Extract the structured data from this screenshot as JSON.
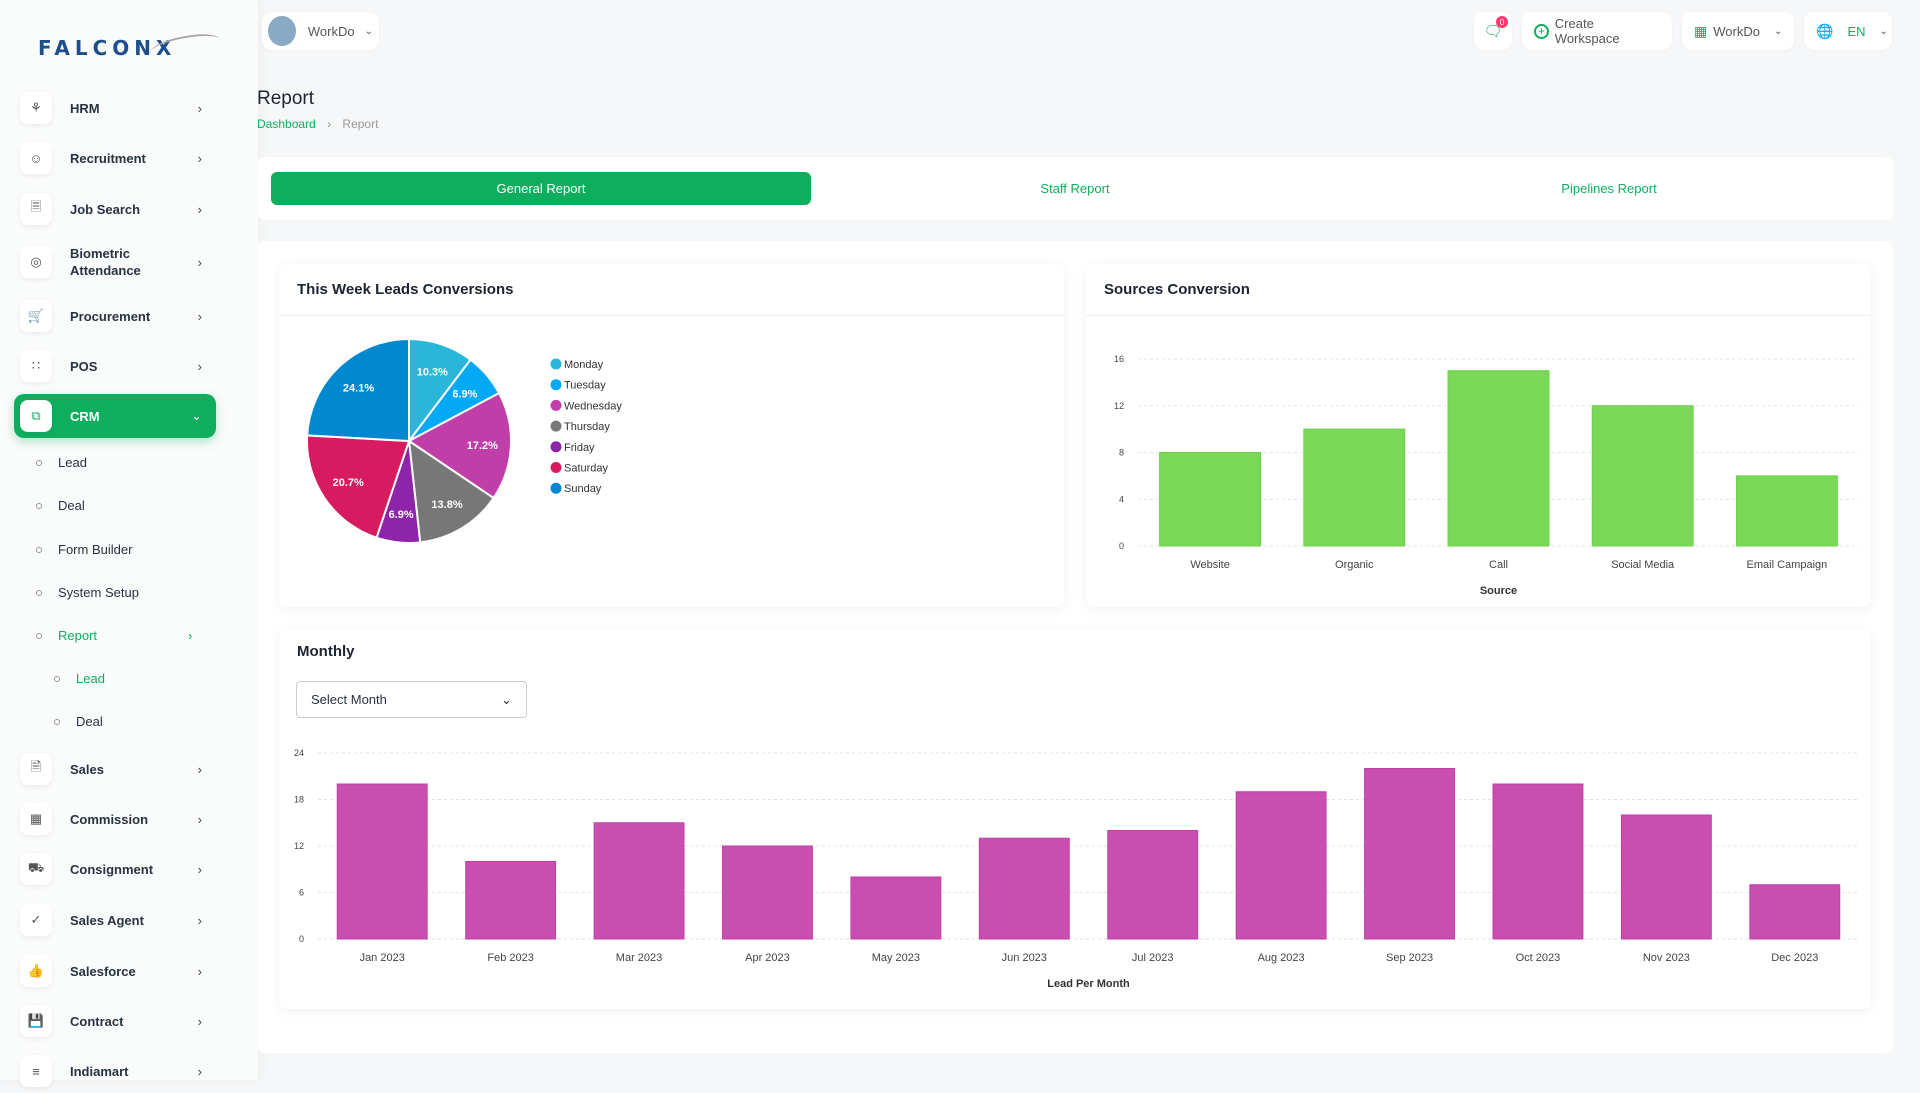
{
  "brand": {
    "logo": "FALCONX"
  },
  "topbar": {
    "workspace": "WorkDo",
    "notifications": "0",
    "create_workspace": "Create Workspace",
    "workspace_menu": "WorkDo",
    "language": "EN"
  },
  "sidebar": {
    "items": [
      {
        "label": "HRM",
        "icon": "hrm-icon"
      },
      {
        "label": "Recruitment",
        "icon": "user-plus-icon"
      },
      {
        "label": "Job Search",
        "icon": "file-search-icon"
      },
      {
        "label": "Biometric Attendance",
        "icon": "fingerprint-icon"
      },
      {
        "label": "Procurement",
        "icon": "cart-icon"
      },
      {
        "label": "POS",
        "icon": "grid-icon"
      },
      {
        "label": "CRM",
        "icon": "crm-icon",
        "active": true
      },
      {
        "label": "Sales",
        "icon": "file-icon"
      },
      {
        "label": "Commission",
        "icon": "calculator-icon"
      },
      {
        "label": "Consignment",
        "icon": "truck-icon"
      },
      {
        "label": "Sales Agent",
        "icon": "user-check-icon"
      },
      {
        "label": "Salesforce",
        "icon": "thumb-up-icon"
      },
      {
        "label": "Contract",
        "icon": "contract-icon"
      },
      {
        "label": "Indiamart",
        "icon": "list-icon"
      }
    ],
    "crm_sub": [
      "Lead",
      "Deal",
      "Form Builder",
      "System Setup",
      "Report"
    ],
    "report_sub": [
      "Lead",
      "Deal"
    ]
  },
  "page": {
    "title": "Report",
    "breadcrumb": [
      "Dashboard",
      "Report"
    ]
  },
  "tabs": [
    "General Report",
    "Staff Report",
    "Pipelines Report"
  ],
  "pie_card": {
    "title": "This Week Leads Conversions"
  },
  "sources_card": {
    "title": "Sources Conversion"
  },
  "monthly_card": {
    "title": "Monthly",
    "select": "Select Month"
  },
  "colors": {
    "accent": "#0fae5f",
    "source_bar": "#7ad858",
    "month_bar": "#c84fb0"
  },
  "chart_data": [
    {
      "type": "pie",
      "categories": [
        "Monday",
        "Tuesday",
        "Wednesday",
        "Thursday",
        "Friday",
        "Saturday",
        "Sunday"
      ],
      "values": [
        10.3,
        6.9,
        17.2,
        13.8,
        6.9,
        20.7,
        24.1
      ],
      "colors": [
        "#29b6d9",
        "#03a9f4",
        "#c13ea9",
        "#777777",
        "#8e24aa",
        "#d81b60",
        "#0288d1"
      ],
      "legend": "right"
    },
    {
      "type": "bar",
      "categories": [
        "Website",
        "Organic",
        "Call",
        "Social Media",
        "Email Campaign"
      ],
      "values": [
        8,
        10,
        15,
        12,
        6
      ],
      "xlabel": "Source",
      "ylim": [
        0,
        16
      ],
      "yticks": [
        0,
        4,
        8,
        12,
        16
      ],
      "grid": true
    },
    {
      "type": "bar",
      "categories": [
        "Jan 2023",
        "Feb 2023",
        "Mar 2023",
        "Apr 2023",
        "May 2023",
        "Jun 2023",
        "Jul 2023",
        "Aug 2023",
        "Sep 2023",
        "Oct 2023",
        "Nov 2023",
        "Dec 2023"
      ],
      "values": [
        20,
        10,
        15,
        12,
        8,
        13,
        14,
        19,
        22,
        20,
        16,
        7
      ],
      "xlabel": "Lead Per Month",
      "ylim": [
        0,
        24
      ],
      "yticks": [
        0,
        6,
        12,
        18,
        24
      ],
      "grid": true
    }
  ]
}
